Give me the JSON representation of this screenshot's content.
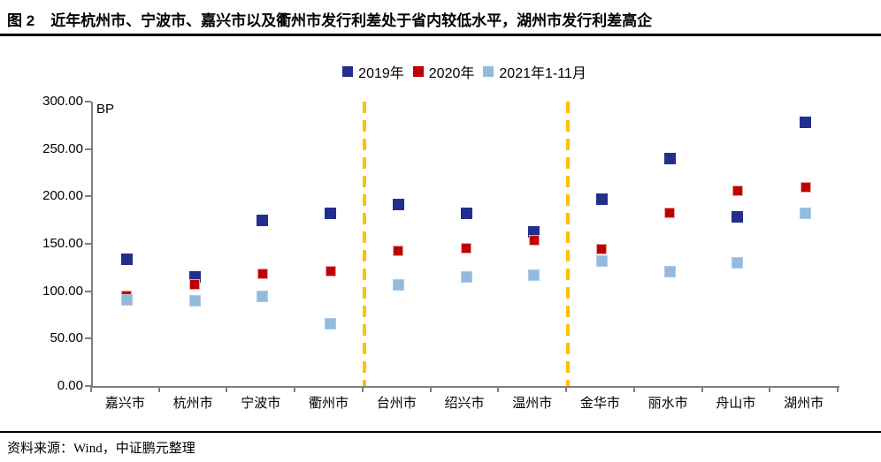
{
  "header": {
    "figure_label": "图 2",
    "title": "近年杭州市、宁波市、嘉兴市以及衢州市发行利差处于省内较低水平，湖州市发行利差高企"
  },
  "chart_data": {
    "type": "scatter",
    "title": "",
    "unit_label": "BP",
    "ylabel": "BP",
    "xlabel": "",
    "ylim": [
      0,
      300
    ],
    "ytick_step": 50,
    "ytick_decimals": 2,
    "grid": false,
    "legend_position": "top-center",
    "axis_color": "#7f7f7f",
    "separator_color": "#ffc000",
    "separators_after_category": [
      "衢州市",
      "温州市"
    ],
    "categories": [
      "嘉兴市",
      "杭州市",
      "宁波市",
      "衢州市",
      "台州市",
      "绍兴市",
      "温州市",
      "金华市",
      "丽水市",
      "舟山市",
      "湖州市"
    ],
    "series": [
      {
        "name": "2019年",
        "color": "#232e8d",
        "border_color": "#232e8d",
        "values": [
          134,
          115,
          175,
          182,
          191,
          182,
          163,
          197,
          240,
          178,
          278
        ]
      },
      {
        "name": "2020年",
        "color": "#c00000",
        "border_color": "#e6a6a6",
        "values": [
          95,
          107,
          118,
          121,
          143,
          145,
          154,
          144,
          183,
          206,
          210
        ]
      },
      {
        "name": "2021年1-11月",
        "color": "#92badd",
        "border_color": "#aecbe8",
        "values": [
          91,
          90,
          95,
          66,
          107,
          115,
          117,
          132,
          121,
          130,
          182
        ]
      }
    ]
  },
  "footer": {
    "source": "资料来源：Wind，中证鹏元整理"
  }
}
